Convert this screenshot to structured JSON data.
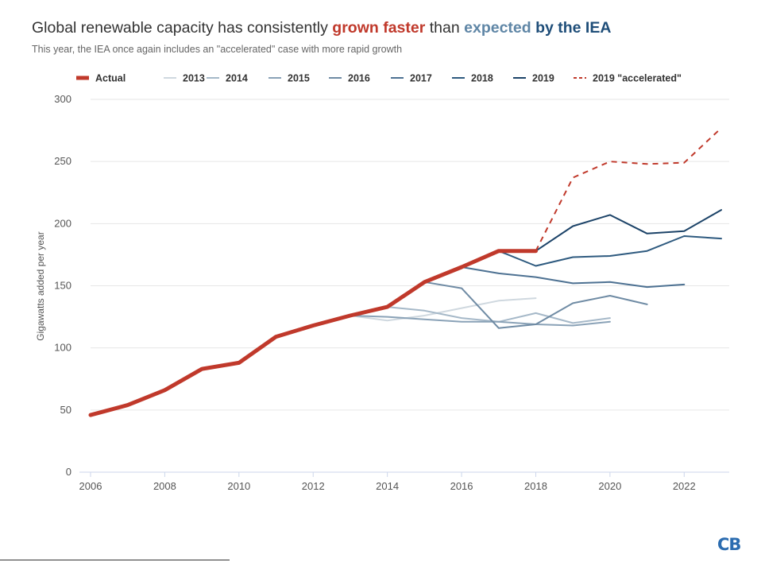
{
  "header": {
    "title_part1": "Global renewable capacity has consistently ",
    "title_red": "grown faster",
    "title_part2": " than ",
    "title_blue": "expected",
    "title_part3": " ",
    "title_navy": "by the IEA",
    "subtitle": "This year, the IEA once again includes an \"accelerated\" case with more rapid growth"
  },
  "logo": {
    "text": "CB"
  },
  "chart_data": {
    "type": "line",
    "ylabel": "Gigawatts added per year",
    "xlabel": "",
    "xlim": [
      2006,
      2023
    ],
    "ylim": [
      0,
      300
    ],
    "xticks": [
      2006,
      2008,
      2010,
      2012,
      2014,
      2016,
      2018,
      2020,
      2022
    ],
    "yticks": [
      0,
      50,
      100,
      150,
      200,
      250,
      300
    ],
    "grid": "horizontal",
    "legend_position": "top",
    "series": [
      {
        "name": "Actual",
        "color": "#c0392b",
        "style": "solid",
        "width": 5,
        "x": [
          2006,
          2007,
          2008,
          2009,
          2010,
          2011,
          2012,
          2013,
          2014,
          2015,
          2016,
          2017,
          2018
        ],
        "y": [
          46,
          54,
          66,
          83,
          88,
          109,
          118,
          126,
          133,
          153,
          165,
          178,
          178
        ]
      },
      {
        "name": "2013",
        "color": "#cfd8df",
        "style": "solid",
        "width": 2,
        "x": [
          2013,
          2014,
          2015,
          2016,
          2017,
          2018
        ],
        "y": [
          126,
          122,
          126,
          132,
          138,
          140
        ]
      },
      {
        "name": "2014",
        "color": "#a5b8c8",
        "style": "solid",
        "width": 2,
        "x": [
          2014,
          2015,
          2016,
          2017,
          2018,
          2019,
          2020
        ],
        "y": [
          133,
          130,
          124,
          121,
          128,
          120,
          124
        ]
      },
      {
        "name": "2015",
        "color": "#8aa2b7",
        "style": "solid",
        "width": 2,
        "x": [
          2013,
          2014,
          2015,
          2016,
          2017,
          2018,
          2019,
          2020
        ],
        "y": [
          126,
          125,
          123,
          121,
          121,
          119,
          118,
          121
        ]
      },
      {
        "name": "2016",
        "color": "#6f8ba4",
        "style": "solid",
        "width": 2,
        "x": [
          2015,
          2016,
          2017,
          2018,
          2019,
          2020,
          2021
        ],
        "y": [
          153,
          148,
          116,
          119,
          136,
          142,
          135
        ]
      },
      {
        "name": "2017",
        "color": "#4d7192",
        "style": "solid",
        "width": 2,
        "x": [
          2016,
          2017,
          2018,
          2019,
          2020,
          2021,
          2022
        ],
        "y": [
          165,
          160,
          157,
          152,
          153,
          149,
          151
        ]
      },
      {
        "name": "2018",
        "color": "#2e5a7f",
        "style": "solid",
        "width": 2,
        "x": [
          2017,
          2018,
          2019,
          2020,
          2021,
          2022,
          2023
        ],
        "y": [
          178,
          166,
          173,
          174,
          178,
          190,
          188
        ]
      },
      {
        "name": "2019",
        "color": "#1c4368",
        "style": "solid",
        "width": 2,
        "x": [
          2018,
          2019,
          2020,
          2021,
          2022,
          2023
        ],
        "y": [
          178,
          198,
          207,
          192,
          194,
          211
        ]
      },
      {
        "name": "2019 \"accelerated\"",
        "color": "#c0392b",
        "style": "dashed",
        "width": 2,
        "x": [
          2018,
          2019,
          2020,
          2021,
          2022,
          2023
        ],
        "y": [
          178,
          237,
          250,
          248,
          249,
          277
        ]
      }
    ]
  }
}
